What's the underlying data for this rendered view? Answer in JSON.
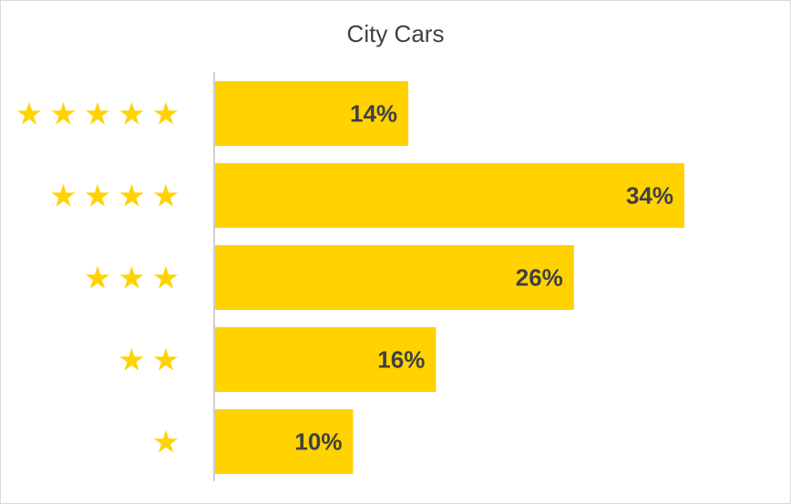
{
  "chart_data": {
    "type": "bar",
    "orientation": "horizontal",
    "title": "City Cars",
    "categories": [
      "★★★★★",
      "★★★★",
      "★★★",
      "★★",
      "★"
    ],
    "star_counts": [
      5,
      4,
      3,
      2,
      1
    ],
    "values": [
      14,
      34,
      26,
      16,
      10
    ],
    "data_labels": [
      "14%",
      "34%",
      "26%",
      "16%",
      "10%"
    ],
    "unit": "%",
    "xlim": [
      0,
      40
    ],
    "grid": false,
    "legend": "none",
    "xlabel": "",
    "ylabel": ""
  },
  "colors": {
    "bar": "#FFD200",
    "star": "#FFD200",
    "text": "#404040",
    "axis": "#bfbfbf"
  },
  "icons": {
    "category_marker": "star-icon"
  }
}
